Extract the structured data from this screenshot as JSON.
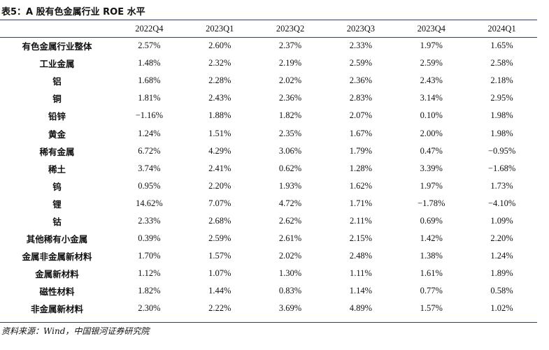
{
  "title": "表5：A 股有色金属行业 ROE 水平",
  "source": "资料来源：Wind，中国银河证券研究院",
  "columns": [
    "",
    "2022Q4",
    "2023Q1",
    "2023Q2",
    "2023Q3",
    "2023Q4",
    "2024Q1"
  ],
  "rows": [
    {
      "name": "有色金属行业整体",
      "values": [
        "2.57%",
        "2.60%",
        "2.37%",
        "2.33%",
        "1.97%",
        "1.65%"
      ]
    },
    {
      "name": "工业金属",
      "values": [
        "1.48%",
        "2.32%",
        "2.19%",
        "2.59%",
        "2.59%",
        "2.58%"
      ]
    },
    {
      "name": "铝",
      "values": [
        "1.68%",
        "2.28%",
        "2.02%",
        "2.36%",
        "2.43%",
        "2.18%"
      ]
    },
    {
      "name": "铜",
      "values": [
        "1.81%",
        "2.43%",
        "2.36%",
        "2.83%",
        "3.14%",
        "2.95%"
      ]
    },
    {
      "name": "铅锌",
      "values": [
        "−1.16%",
        "1.88%",
        "1.82%",
        "2.07%",
        "0.10%",
        "1.98%"
      ]
    },
    {
      "name": "黄金",
      "values": [
        "1.24%",
        "1.51%",
        "2.35%",
        "1.67%",
        "2.00%",
        "1.98%"
      ]
    },
    {
      "name": "稀有金属",
      "values": [
        "6.72%",
        "4.29%",
        "3.06%",
        "1.79%",
        "0.47%",
        "−0.95%"
      ]
    },
    {
      "name": "稀土",
      "values": [
        "3.74%",
        "2.41%",
        "0.62%",
        "1.28%",
        "3.39%",
        "−1.68%"
      ]
    },
    {
      "name": "钨",
      "values": [
        "0.95%",
        "2.20%",
        "1.93%",
        "1.62%",
        "1.97%",
        "1.73%"
      ]
    },
    {
      "name": "锂",
      "values": [
        "14.62%",
        "7.07%",
        "4.72%",
        "1.71%",
        "−1.78%",
        "−4.10%"
      ]
    },
    {
      "name": "钴",
      "values": [
        "2.33%",
        "2.68%",
        "2.62%",
        "2.11%",
        "0.69%",
        "1.09%"
      ]
    },
    {
      "name": "其他稀有小金属",
      "values": [
        "0.39%",
        "2.59%",
        "2.61%",
        "2.15%",
        "1.42%",
        "2.20%"
      ]
    },
    {
      "name": "金属非金属新材料",
      "values": [
        "1.70%",
        "1.57%",
        "2.02%",
        "2.48%",
        "1.38%",
        "1.24%"
      ]
    },
    {
      "name": "金属新材料",
      "values": [
        "1.12%",
        "1.07%",
        "1.30%",
        "1.11%",
        "1.61%",
        "1.89%"
      ]
    },
    {
      "name": "磁性材料",
      "values": [
        "1.82%",
        "1.44%",
        "0.83%",
        "1.14%",
        "0.77%",
        "0.58%"
      ]
    },
    {
      "name": "非金属新材料",
      "values": [
        "2.30%",
        "2.22%",
        "3.69%",
        "4.89%",
        "1.57%",
        "1.02%"
      ]
    }
  ],
  "colors": {
    "rule": "#2a3d7a"
  }
}
